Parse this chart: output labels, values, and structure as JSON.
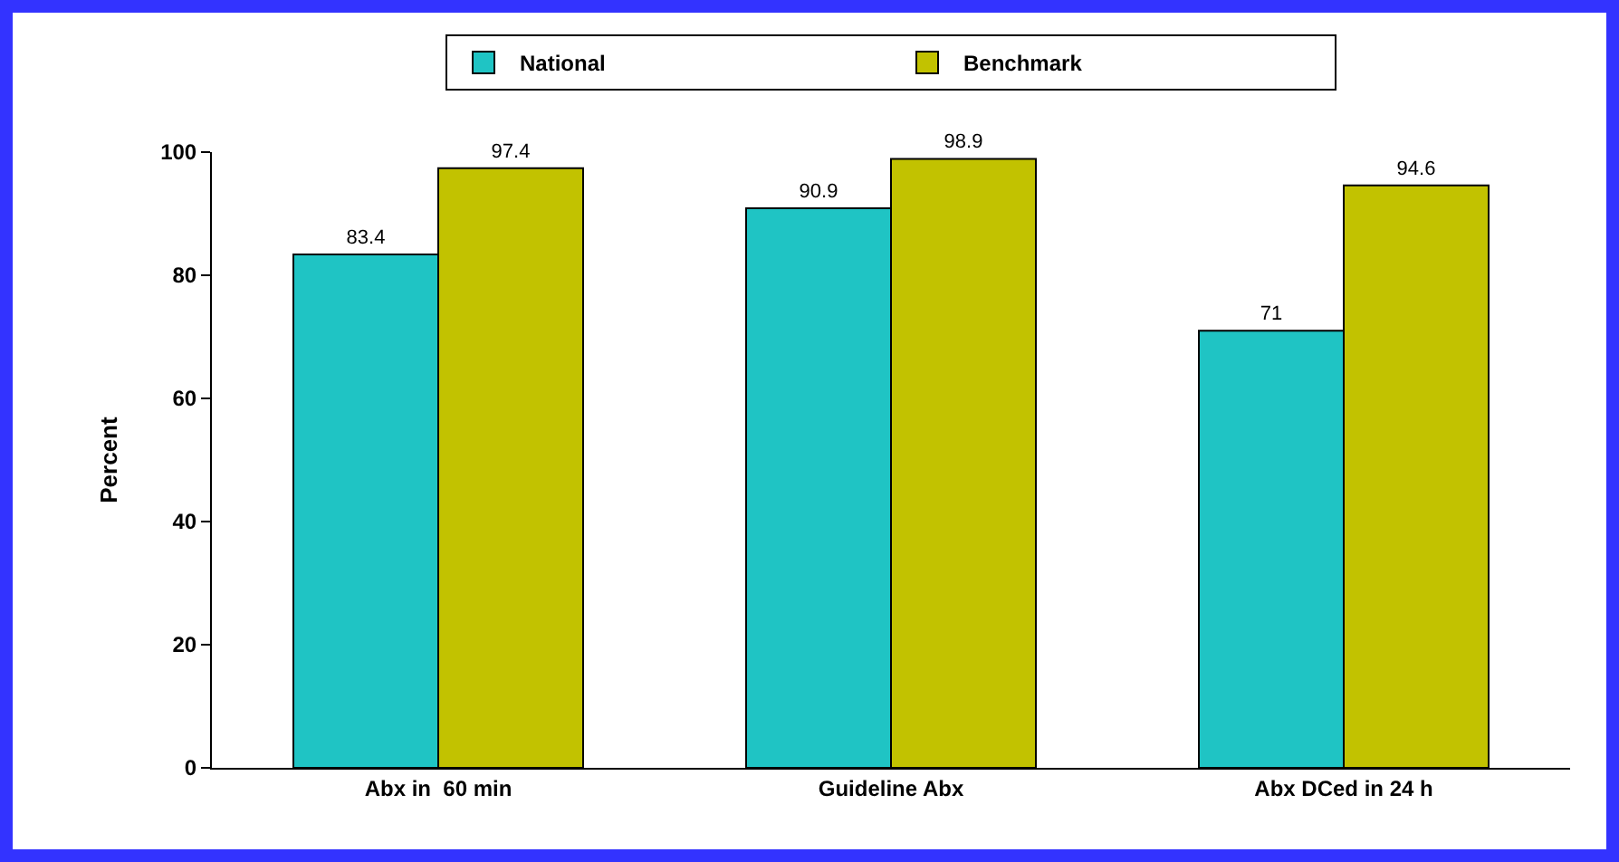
{
  "chart_data": {
    "type": "bar",
    "ylabel": "Percent",
    "categories": [
      "Abx in  60 min",
      "Guideline Abx",
      "Abx DCed in 24 h"
    ],
    "series": [
      {
        "name": "National",
        "color": "#1fc4c4",
        "values": [
          83.4,
          90.9,
          71
        ]
      },
      {
        "name": "Benchmark",
        "color": "#c2c200",
        "values": [
          97.4,
          98.9,
          94.6
        ]
      }
    ],
    "ylim": [
      0,
      100
    ],
    "yticks": [
      0,
      20,
      40,
      60,
      80,
      100
    ],
    "grid": false,
    "legend": "top",
    "data_labels": true
  }
}
